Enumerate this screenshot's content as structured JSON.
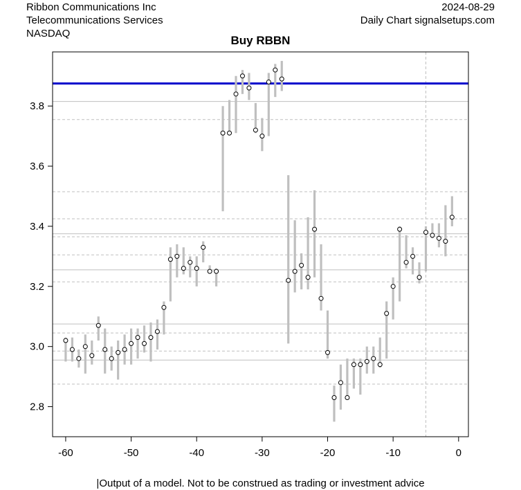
{
  "header": {
    "company": "Ribbon Communications Inc",
    "sector": "Telecommunications Services",
    "exchange": "NASDAQ",
    "date": "2024-08-29",
    "source": "Daily Chart signalsetups.com"
  },
  "footer": "|Output of a model. Not to be construed as trading or investment advice",
  "chart_data": {
    "type": "line",
    "title": "Buy RBBN",
    "xlabel": "",
    "ylabel": "",
    "xlim": [
      -62,
      1.5
    ],
    "ylim": [
      2.7,
      3.98
    ],
    "x_ticks": [
      -60,
      -50,
      -40,
      -30,
      -20,
      -10,
      0
    ],
    "y_ticks": [
      2.8,
      3.0,
      3.2,
      3.4,
      3.6,
      3.8
    ],
    "grid": "horizontal reference lines",
    "signal_level": 3.875,
    "vertical_marker": -5,
    "solid_lines": [
      3.815,
      3.375,
      3.255,
      3.075,
      2.955
    ],
    "dashed_lines": [
      3.755,
      3.515,
      3.425,
      3.365,
      3.305,
      3.215,
      3.045,
      2.985,
      2.875
    ],
    "colors": {
      "signal": "#0000cc",
      "bars": "#bfbfbf",
      "grid": "#bfbfbf"
    },
    "series": [
      {
        "x": [
          -60,
          -59,
          -58,
          -57,
          -56,
          -55,
          -54,
          -53,
          -52,
          -51,
          -50,
          -49,
          -48,
          -47,
          -46,
          -45,
          -44,
          -43,
          -42,
          -41,
          -40,
          -39,
          -38,
          -37,
          -36,
          -35,
          -34,
          -33,
          -32,
          -31,
          -30,
          -29,
          -28,
          -27,
          -26,
          -25,
          -24,
          -23,
          -22,
          -21,
          -20,
          -19,
          -18,
          -17,
          -16,
          -15,
          -14,
          -13,
          -12,
          -11,
          -10,
          -9,
          -8,
          -7,
          -6,
          -5,
          -4,
          -3,
          -2,
          -1
        ],
        "close": [
          3.02,
          2.99,
          2.96,
          3.0,
          2.97,
          3.07,
          2.99,
          2.96,
          2.98,
          2.99,
          3.01,
          3.03,
          3.01,
          3.03,
          3.05,
          3.13,
          3.29,
          3.3,
          3.26,
          3.28,
          3.26,
          3.33,
          3.25,
          3.25,
          3.71,
          3.71,
          3.84,
          3.9,
          3.86,
          3.72,
          3.7,
          3.88,
          3.92,
          3.89,
          3.22,
          3.25,
          3.27,
          3.23,
          3.39,
          3.16,
          2.98,
          2.83,
          2.88,
          2.83,
          2.94,
          2.94,
          2.95,
          2.96,
          2.94,
          3.11,
          3.2,
          3.39,
          3.28,
          3.3,
          3.23,
          3.38,
          3.37,
          3.36,
          3.35,
          3.43
        ],
        "high": [
          3.03,
          3.03,
          2.99,
          3.04,
          3.02,
          3.1,
          3.06,
          3.0,
          3.02,
          3.04,
          3.06,
          3.06,
          3.07,
          3.08,
          3.09,
          3.15,
          3.33,
          3.34,
          3.33,
          3.3,
          3.3,
          3.35,
          3.27,
          3.26,
          3.8,
          3.82,
          3.9,
          3.92,
          3.91,
          3.81,
          3.76,
          3.91,
          3.94,
          3.95,
          3.57,
          3.42,
          3.31,
          3.43,
          3.52,
          3.34,
          3.12,
          2.87,
          2.94,
          2.96,
          2.96,
          2.96,
          3.0,
          3.0,
          3.03,
          3.15,
          3.23,
          3.4,
          3.37,
          3.33,
          3.28,
          3.4,
          3.41,
          3.41,
          3.47,
          3.5
        ],
        "low": [
          2.95,
          2.95,
          2.93,
          2.91,
          2.94,
          3.02,
          2.91,
          2.92,
          2.89,
          2.94,
          2.94,
          2.96,
          2.98,
          2.95,
          2.99,
          3.04,
          3.15,
          3.23,
          3.24,
          3.23,
          3.2,
          3.28,
          3.25,
          3.2,
          3.45,
          3.71,
          3.71,
          3.84,
          3.82,
          3.71,
          3.65,
          3.7,
          3.83,
          3.85,
          3.01,
          3.18,
          3.19,
          3.19,
          3.23,
          3.12,
          2.96,
          2.75,
          2.79,
          2.83,
          2.86,
          2.84,
          2.91,
          2.91,
          2.93,
          2.96,
          3.09,
          3.15,
          3.26,
          3.24,
          3.21,
          3.25,
          3.36,
          3.33,
          3.3,
          3.4
        ]
      }
    ]
  }
}
